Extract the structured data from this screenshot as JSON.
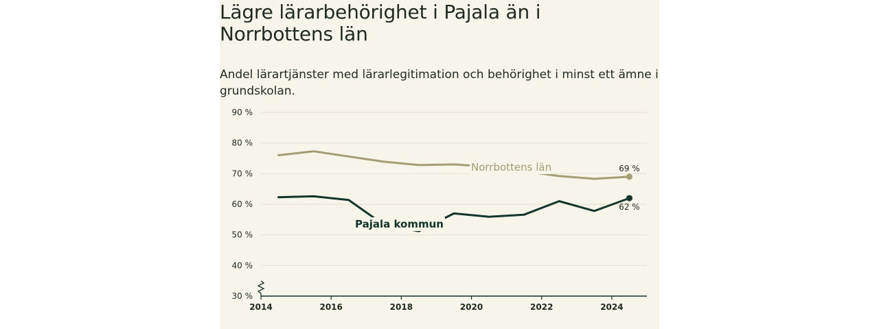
{
  "title": "Lägre lärarbehörighet i Pajala än i Norrbottens län",
  "subtitle": "Andel lärartjänster med lärarlegitimation och behörighet i minst ett ämne i grundskolan.",
  "colors": {
    "background": "#f7f4e9",
    "norrbotten": "#a49d73",
    "pajala": "#12342c",
    "grid": "#e3dfd1",
    "text": "#1e2a24"
  },
  "chart_data": {
    "type": "line",
    "ylim": [
      30,
      90
    ],
    "yticks": [
      30,
      40,
      50,
      60,
      70,
      80,
      90
    ],
    "ytick_labels": [
      "30 %",
      "40 %",
      "50 %",
      "60 %",
      "70 %",
      "80 %",
      "90 %"
    ],
    "xlim": [
      2014,
      2025
    ],
    "xticks": [
      2014,
      2016,
      2018,
      2020,
      2022,
      2024
    ],
    "xtick_labels": [
      "2014",
      "2016",
      "2018",
      "2020",
      "2022",
      "2024"
    ],
    "axis_break": true,
    "grid": true,
    "x": [
      2014.5,
      2015.5,
      2016.5,
      2017.5,
      2018.5,
      2019.5,
      2020.5,
      2021.5,
      2022.5,
      2023.5,
      2024.5
    ],
    "series": [
      {
        "name": "Norrbottens län",
        "key": "norrbotten",
        "values": [
          76,
          77.3,
          75.6,
          73.9,
          72.8,
          73,
          72.3,
          70.8,
          69.2,
          68.3,
          69
        ],
        "end_label": "69 %"
      },
      {
        "name": "Pajala kommun",
        "key": "pajala",
        "values": [
          62.3,
          62.6,
          61.4,
          53.3,
          51.2,
          57,
          55.9,
          56.6,
          61,
          57.8,
          62
        ],
        "end_label": "62 %"
      }
    ]
  }
}
